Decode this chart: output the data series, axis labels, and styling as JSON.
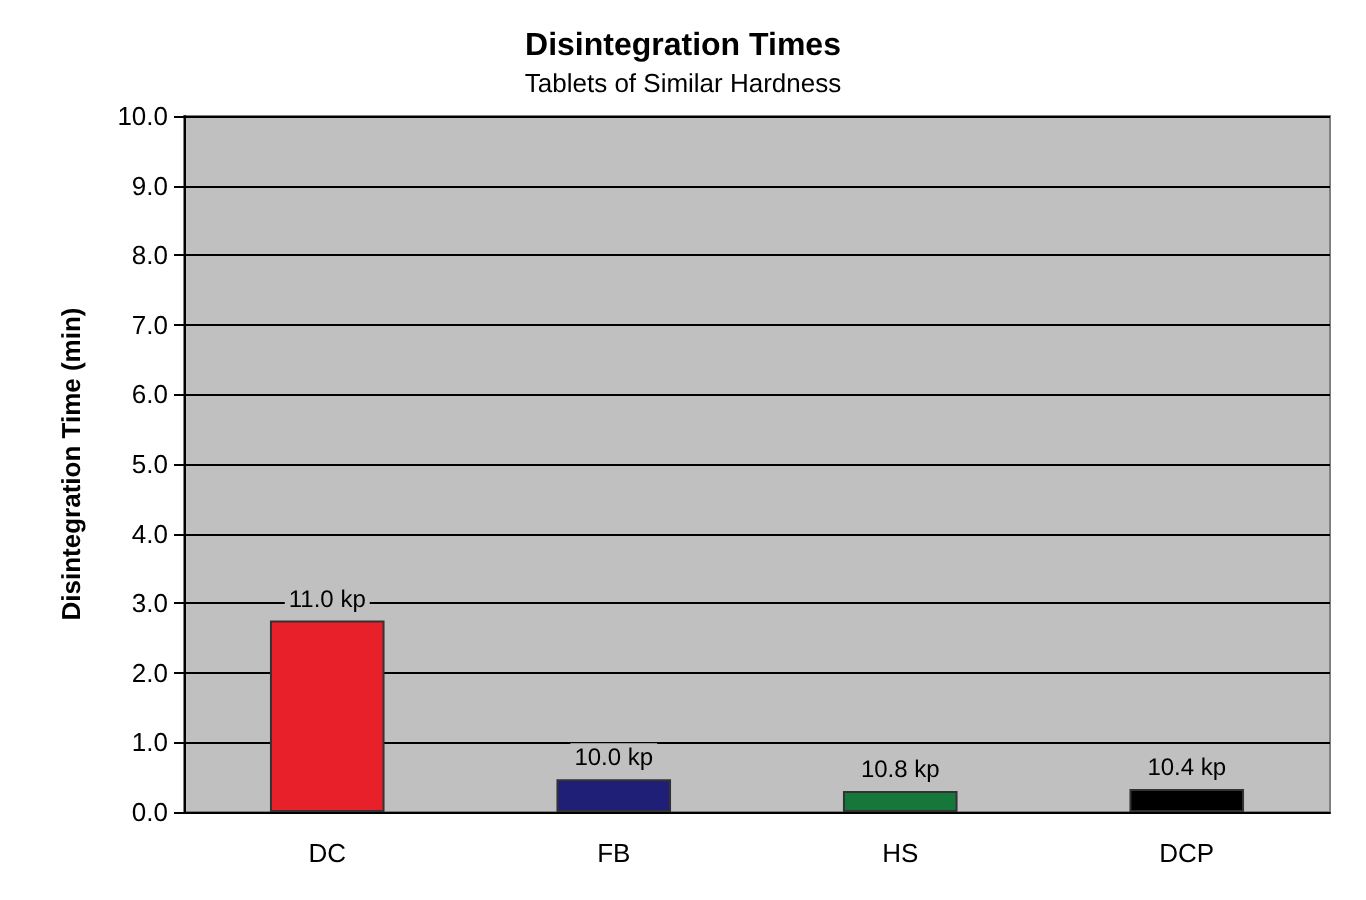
{
  "chart_data": {
    "type": "bar",
    "title": "Disintegration Times",
    "subtitle": "Tablets of Similar Hardness",
    "ylabel": "Disintegration Time (min)",
    "categories": [
      "DC",
      "FB",
      "HS",
      "DCP"
    ],
    "values": [
      2.75,
      0.47,
      0.3,
      0.33
    ],
    "colors": [
      "#e8202a",
      "#1f1f78",
      "#16773a",
      "#000000"
    ],
    "annotations": [
      {
        "text": "11.0 kp",
        "x": "DC",
        "y": 2.75
      },
      {
        "text": "10.0 kp",
        "x": "FB",
        "y": 0.47
      },
      {
        "text": "10.8 kp",
        "x": "HS",
        "y": 0.3
      },
      {
        "text": "10.4 kp",
        "x": "DCP",
        "y": 0.33
      }
    ],
    "ylim": [
      0,
      10
    ],
    "yticks": [
      {
        "value": 0,
        "label": "0.0"
      },
      {
        "value": 1,
        "label": "1.0"
      },
      {
        "value": 2,
        "label": "2.0"
      },
      {
        "value": 3,
        "label": "3.0"
      },
      {
        "value": 4,
        "label": "4.0"
      },
      {
        "value": 5,
        "label": "5.0"
      },
      {
        "value": 6,
        "label": "6.0"
      },
      {
        "value": 7,
        "label": "7.0"
      },
      {
        "value": 8,
        "label": "8.0"
      },
      {
        "value": 9,
        "label": "9.0"
      },
      {
        "value": 10,
        "label": "10.0"
      }
    ],
    "grid": "y"
  }
}
